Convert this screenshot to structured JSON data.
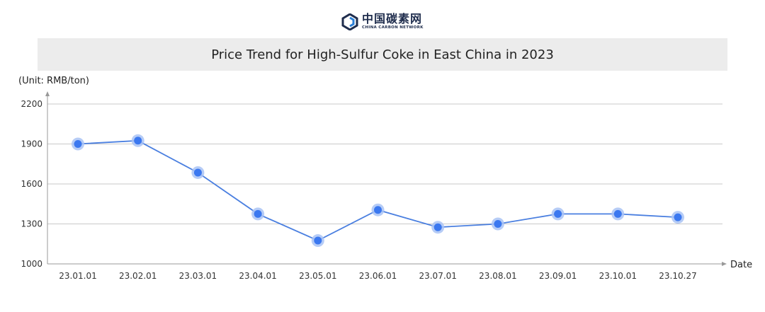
{
  "brand": {
    "name_cn": "中国碳素网",
    "name_en": "CHINA CARBON NETWORK",
    "logo_icon": "china-carbon-network-logo-icon",
    "brand_color": "#1f2d4d",
    "accent_color": "#2b7fd6"
  },
  "chart_data": {
    "type": "line",
    "title": "Price Trend for High-Sulfur Coke in East China in 2023",
    "ylabel": "(Unit: RMB/ton)",
    "xlabel": "Date",
    "categories": [
      "23.01.01",
      "23.02.01",
      "23.03.01",
      "23.04.01",
      "23.05.01",
      "23.06.01",
      "23.07.01",
      "23.08.01",
      "23.09.01",
      "23.10.01",
      "23.10.27"
    ],
    "series": [
      {
        "values": [
          1900,
          1925,
          1685,
          1375,
          1175,
          1405,
          1275,
          1300,
          1375,
          1375,
          1350
        ]
      }
    ],
    "ylim": [
      1000,
      2200
    ],
    "yticks": [
      "1000",
      "1300",
      "1600",
      "1900",
      "2200"
    ],
    "grid": true,
    "line_color": "#4a7fe0",
    "point_color": "#3b78f0",
    "point_halo_color": "#a9c3f5"
  }
}
